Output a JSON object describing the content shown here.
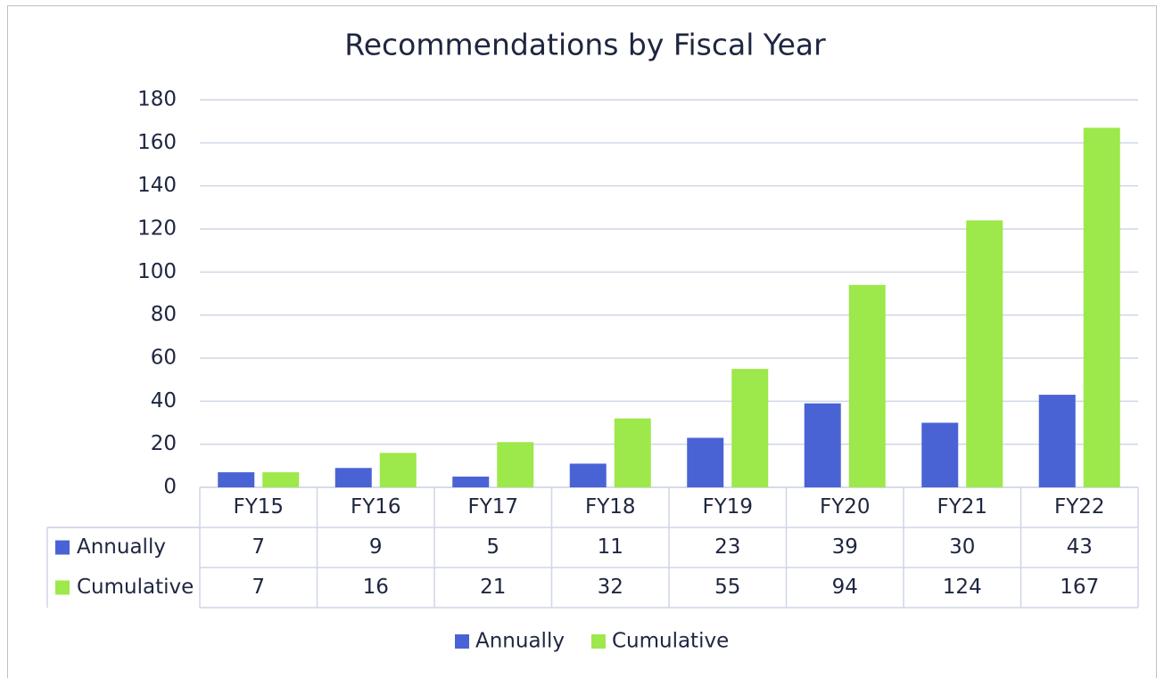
{
  "chart_data": {
    "type": "bar",
    "title": "Recommendations by Fiscal Year",
    "categories": [
      "FY15",
      "FY16",
      "FY17",
      "FY18",
      "FY19",
      "FY20",
      "FY21",
      "FY22"
    ],
    "series": [
      {
        "name": "Annually",
        "color": "#4a63d4",
        "values": [
          7,
          9,
          5,
          11,
          23,
          39,
          30,
          43
        ]
      },
      {
        "name": "Cumulative",
        "color": "#9de84a",
        "values": [
          7,
          16,
          21,
          32,
          55,
          94,
          124,
          167
        ]
      }
    ],
    "ylim": [
      0,
      180
    ],
    "yticks": [
      0,
      20,
      40,
      60,
      80,
      100,
      120,
      140,
      160,
      180
    ],
    "grid": true,
    "legend": "bottom",
    "data_table": true
  }
}
